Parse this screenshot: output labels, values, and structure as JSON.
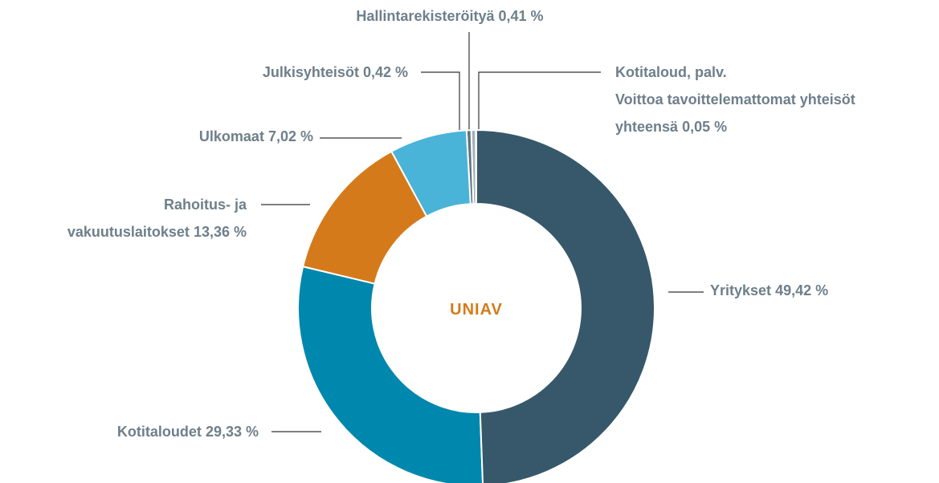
{
  "chart_data": {
    "type": "donut",
    "center_label": "UNIAV",
    "categories": [
      "Yritykset",
      "Kotitaloudet",
      "Rahoitus- ja\nvakuutuslaitokset",
      "Ulkomaat",
      "Julkisyhteisöt",
      "Hallintarekisteröityä",
      "Kotitaloud, palv.\nVoittoa tavoittelemattomat yhteisöt\nyhteensä"
    ],
    "values": [
      49.42,
      29.33,
      13.36,
      7.02,
      0.42,
      0.41,
      0.05
    ],
    "value_labels": [
      "49,42 %",
      "29,33 %",
      "13,36 %",
      "7,02 %",
      "0,42 %",
      "0,41 %",
      "0,05 %"
    ],
    "colors": [
      "#36586a",
      "#0087ad",
      "#d57a1a",
      "#4ab3d8",
      "#5f7480",
      "#a7b0b7",
      "#f0a040"
    ]
  }
}
